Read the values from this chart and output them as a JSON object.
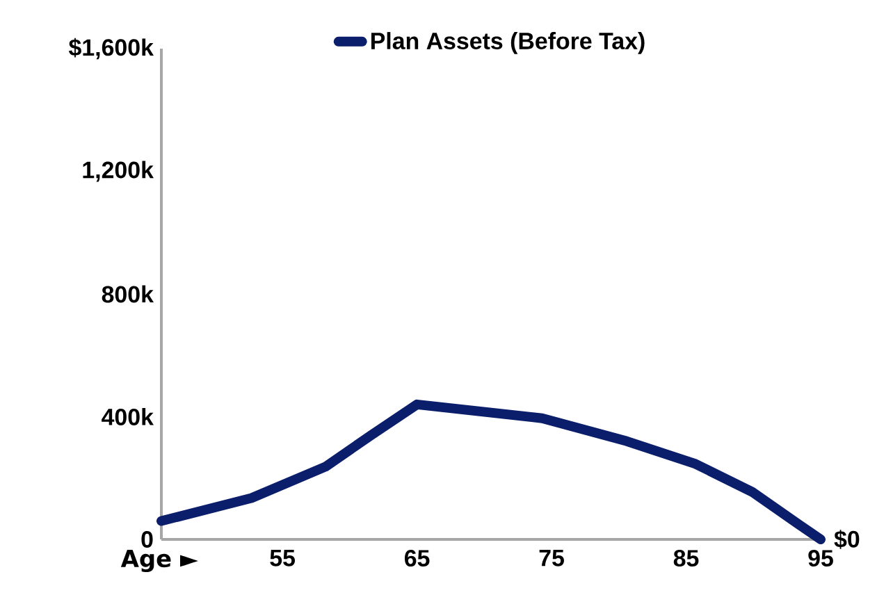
{
  "chart_data": {
    "type": "line",
    "xlabel": "Age ►",
    "x": [
      46,
      52.7,
      58.2,
      61.6,
      65,
      74.3,
      80.6,
      85.7,
      89.9,
      93.3,
      95
    ],
    "series": [
      {
        "name": "Plan Assets (Before Tax)",
        "color": "#0b1e6b",
        "values": [
          60,
          135,
          237,
          340,
          440,
          395,
          320,
          246,
          155,
          51,
          0
        ]
      }
    ],
    "xlim": [
      46,
      95
    ],
    "xticks": [
      55,
      65,
      75,
      85,
      95
    ],
    "ylim": [
      0,
      1600
    ],
    "yticks": [
      {
        "value": 0,
        "label": "0"
      },
      {
        "value": 400,
        "label": "400k"
      },
      {
        "value": 800,
        "label": "800k"
      },
      {
        "value": 1200,
        "label": "1,200k"
      },
      {
        "value": 1600,
        "label": "$1,600k"
      }
    ],
    "annotations": [
      {
        "text": "$0",
        "x": 95,
        "y": 0
      }
    ],
    "legend": "top",
    "grid": false,
    "marker": "none",
    "line_style": "solid"
  }
}
